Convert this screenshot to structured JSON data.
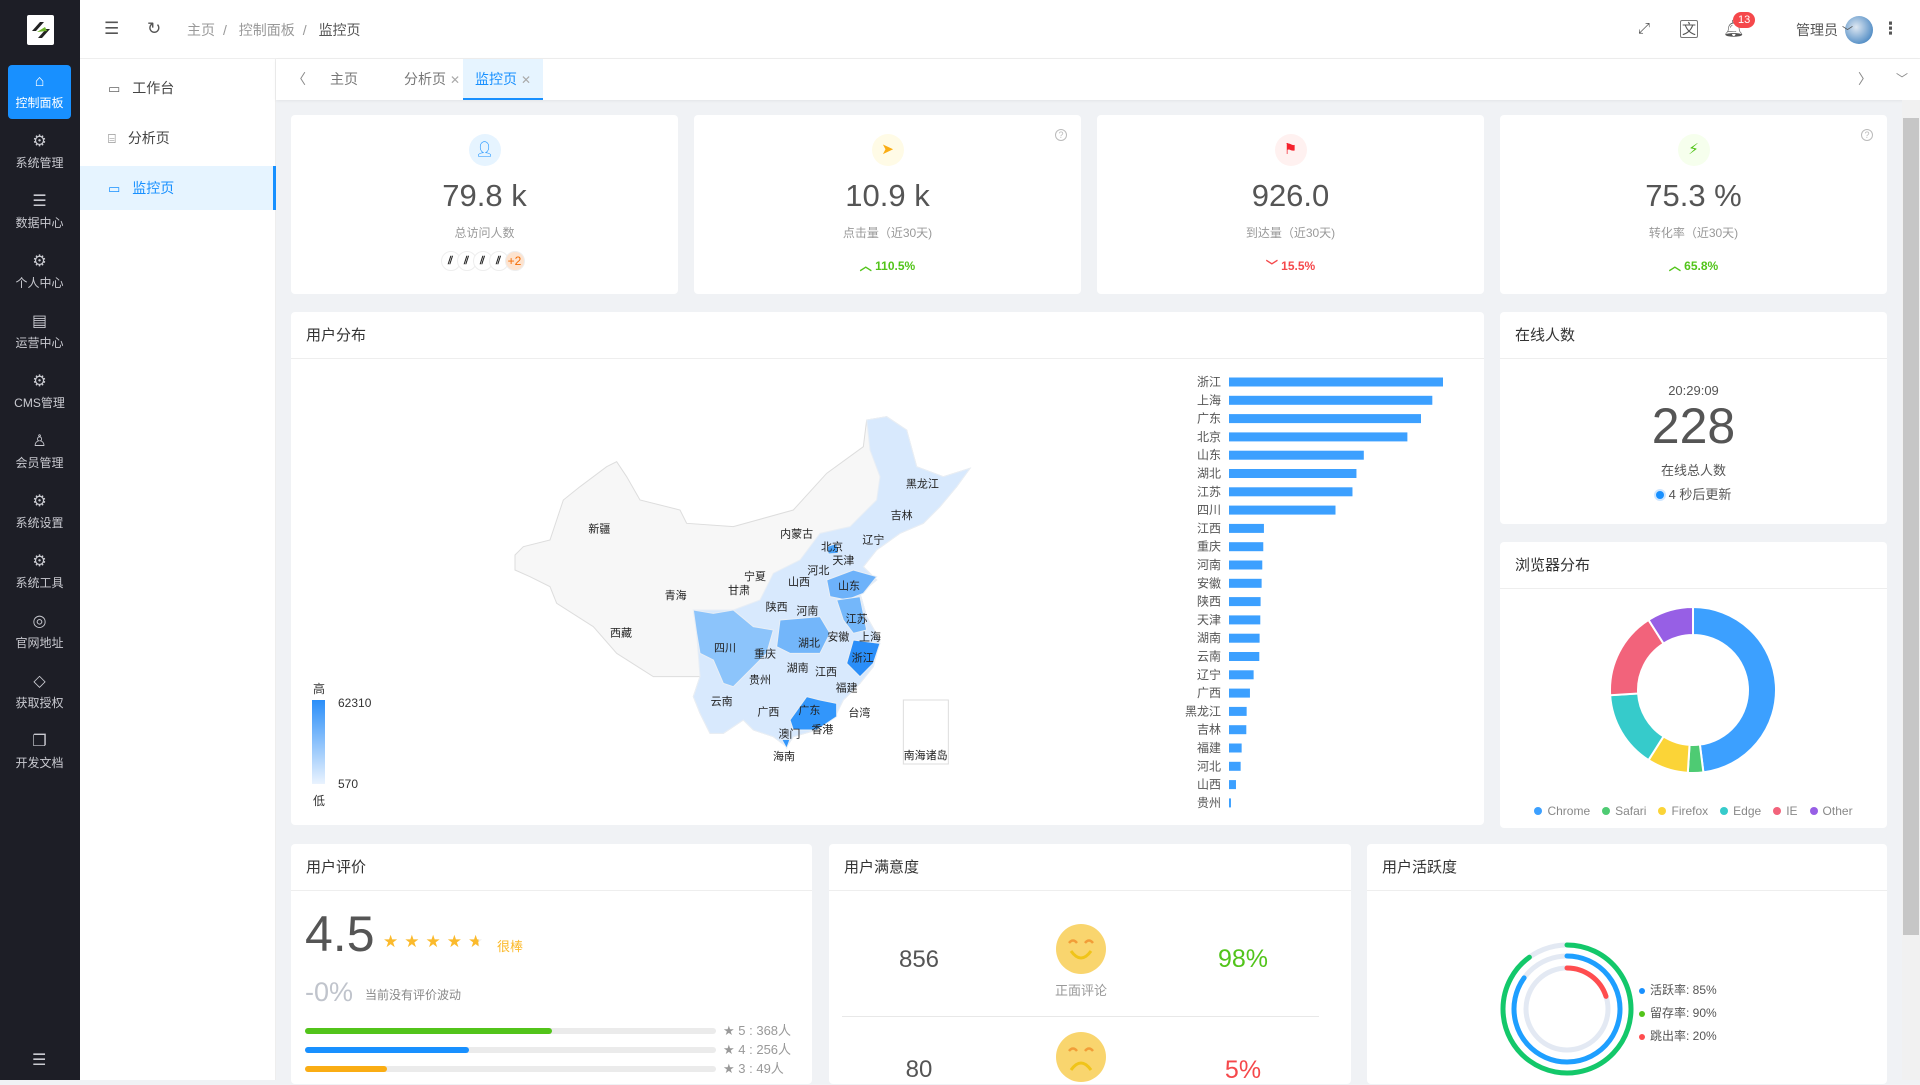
{
  "sidebar": {
    "items": [
      {
        "label": "控制面板",
        "icon": "home-icon",
        "glyph": "⌂",
        "active": true
      },
      {
        "label": "系统管理",
        "icon": "gear-icon",
        "glyph": "⚙"
      },
      {
        "label": "数据中心",
        "icon": "database-icon",
        "glyph": "☰"
      },
      {
        "label": "个人中心",
        "icon": "gears-icon",
        "glyph": "⚙"
      },
      {
        "label": "运营中心",
        "icon": "card-icon",
        "glyph": "▤"
      },
      {
        "label": "CMS管理",
        "icon": "gears-icon",
        "glyph": "⚙"
      },
      {
        "label": "会员管理",
        "icon": "user-icon",
        "glyph": "♙"
      },
      {
        "label": "系统设置",
        "icon": "gears-icon",
        "glyph": "⚙"
      },
      {
        "label": "系统工具",
        "icon": "gears-icon",
        "glyph": "⚙"
      },
      {
        "label": "官网地址",
        "icon": "lifebuoy-icon",
        "glyph": "◎"
      },
      {
        "label": "获取授权",
        "icon": "diamond-icon",
        "glyph": "◇"
      },
      {
        "label": "开发文档",
        "icon": "copy-icon",
        "glyph": "❐"
      }
    ]
  },
  "header": {
    "breadcrumb": [
      "主页",
      "控制面板",
      "监控页"
    ],
    "notifications": "13",
    "user": "管理员"
  },
  "submenu": [
    {
      "label": "工作台",
      "icon": "monitor-icon"
    },
    {
      "label": "分析页",
      "icon": "presentation-icon"
    },
    {
      "label": "监控页",
      "icon": "monitor-icon",
      "active": true
    }
  ],
  "tabs": [
    {
      "label": "主页"
    },
    {
      "label": "分析页",
      "closable": true
    },
    {
      "label": "监控页",
      "closable": true,
      "active": true
    }
  ],
  "stats": [
    {
      "value": "79.8 k",
      "label": "总访问人数",
      "icon": "user-icon",
      "color": "#1890ff",
      "bg": "#e6f4ff",
      "extra": "+2"
    },
    {
      "value": "10.9 k",
      "label": "点击量（近30天)",
      "icon": "send-icon",
      "color": "#faad14",
      "bg": "#fffbe6",
      "trend": "110.5%",
      "dir": "up",
      "help": true
    },
    {
      "value": "926.0",
      "label": "到达量（近30天)",
      "icon": "flag-icon",
      "color": "#f5222d",
      "bg": "#fff1f0",
      "trend": "15.5%",
      "dir": "down"
    },
    {
      "value": "75.3 %",
      "label": "转化率（近30天)",
      "icon": "lightning-icon",
      "color": "#52c41a",
      "bg": "#f6ffed",
      "trend": "65.8%",
      "dir": "up",
      "help": true
    }
  ],
  "distribution": {
    "title": "用户分布",
    "legend_high": "高",
    "legend_low": "低",
    "max": "62310",
    "min": "570",
    "map_labels": [
      "新疆",
      "西藏",
      "青海",
      "甘肃",
      "宁夏",
      "内蒙古",
      "黑龙江",
      "吉林",
      "辽宁",
      "北京",
      "天津",
      "河北",
      "山西",
      "山东",
      "陕西",
      "河南",
      "江苏",
      "安徽",
      "上海",
      "湖北",
      "四川",
      "重庆",
      "浙江",
      "湖南",
      "江西",
      "贵州",
      "福建",
      "云南",
      "广西",
      "广东",
      "台湾",
      "香港",
      "澳门",
      "海南",
      "南海诸岛"
    ]
  },
  "online": {
    "title": "在线人数",
    "time": "20:29:09",
    "count": "228",
    "label": "在线总人数",
    "update": "4 秒后更新"
  },
  "browser": {
    "title": "浏览器分布"
  },
  "rating": {
    "title": "用户评价",
    "score": "4.5",
    "stars": 4.5,
    "text": "很棒",
    "change": "-0%",
    "change_text": "当前没有评价波动",
    "rows": [
      {
        "label": "5 : 368人",
        "pct": 60,
        "color": "#52c41a"
      },
      {
        "label": "4 : 256人",
        "pct": 40,
        "color": "#1890ff"
      },
      {
        "label": "3 : 49人",
        "pct": 20,
        "color": "#faad14"
      }
    ]
  },
  "satisfaction": {
    "title": "用户满意度",
    "positive": {
      "count": "856",
      "label": "正面评论",
      "pct": "98%"
    },
    "negative": {
      "count": "80",
      "pct": "5%"
    }
  },
  "activity": {
    "title": "用户活跃度"
  },
  "chart_data": [
    {
      "type": "bar",
      "title": "用户分布",
      "orientation": "horizontal",
      "categories": [
        "浙江",
        "上海",
        "广东",
        "北京",
        "山东",
        "湖北",
        "江苏",
        "四川",
        "江西",
        "重庆",
        "河南",
        "安徽",
        "陕西",
        "天津",
        "湖南",
        "云南",
        "辽宁",
        "广西",
        "黑龙江",
        "吉林",
        "福建",
        "河北",
        "山西",
        "贵州"
      ],
      "values": [
        62310,
        59200,
        55900,
        51940,
        39250,
        37110,
        35950,
        31010,
        10170,
        9980,
        9690,
        9500,
        9200,
        9110,
        8910,
        8820,
        7170,
        6100,
        5140,
        5040,
        3680,
        3390,
        2030,
        570
      ],
      "color": "#3ca0ff"
    },
    {
      "type": "pie",
      "title": "浏览器分布",
      "legend": "bottom",
      "series": [
        {
          "name": "Chrome",
          "value": 48,
          "color": "#3ca0ff"
        },
        {
          "name": "Safari",
          "value": 3,
          "color": "#4ecb73"
        },
        {
          "name": "Firefox",
          "value": 8,
          "color": "#fbd437"
        },
        {
          "name": "Edge",
          "value": 15,
          "color": "#36cbcb"
        },
        {
          "name": "IE",
          "value": 17,
          "color": "#f2637b"
        },
        {
          "name": "Other",
          "value": 9,
          "color": "#975fe5"
        }
      ]
    },
    {
      "type": "radial-bar",
      "title": "用户活跃度",
      "legend": "right",
      "series": [
        {
          "name": "活跃率",
          "value": 85,
          "label": "活跃率: 85%",
          "color": "#1e9fff",
          "dot": "#1890ff"
        },
        {
          "name": "留存率",
          "value": 90,
          "label": "留存率: 90%",
          "color": "#13c86a",
          "dot": "#52c41a"
        },
        {
          "name": "跳出率",
          "value": 20,
          "label": "跳出率: 20%",
          "color": "#ff4d4f",
          "dot": "#ff4d4f"
        }
      ]
    }
  ]
}
